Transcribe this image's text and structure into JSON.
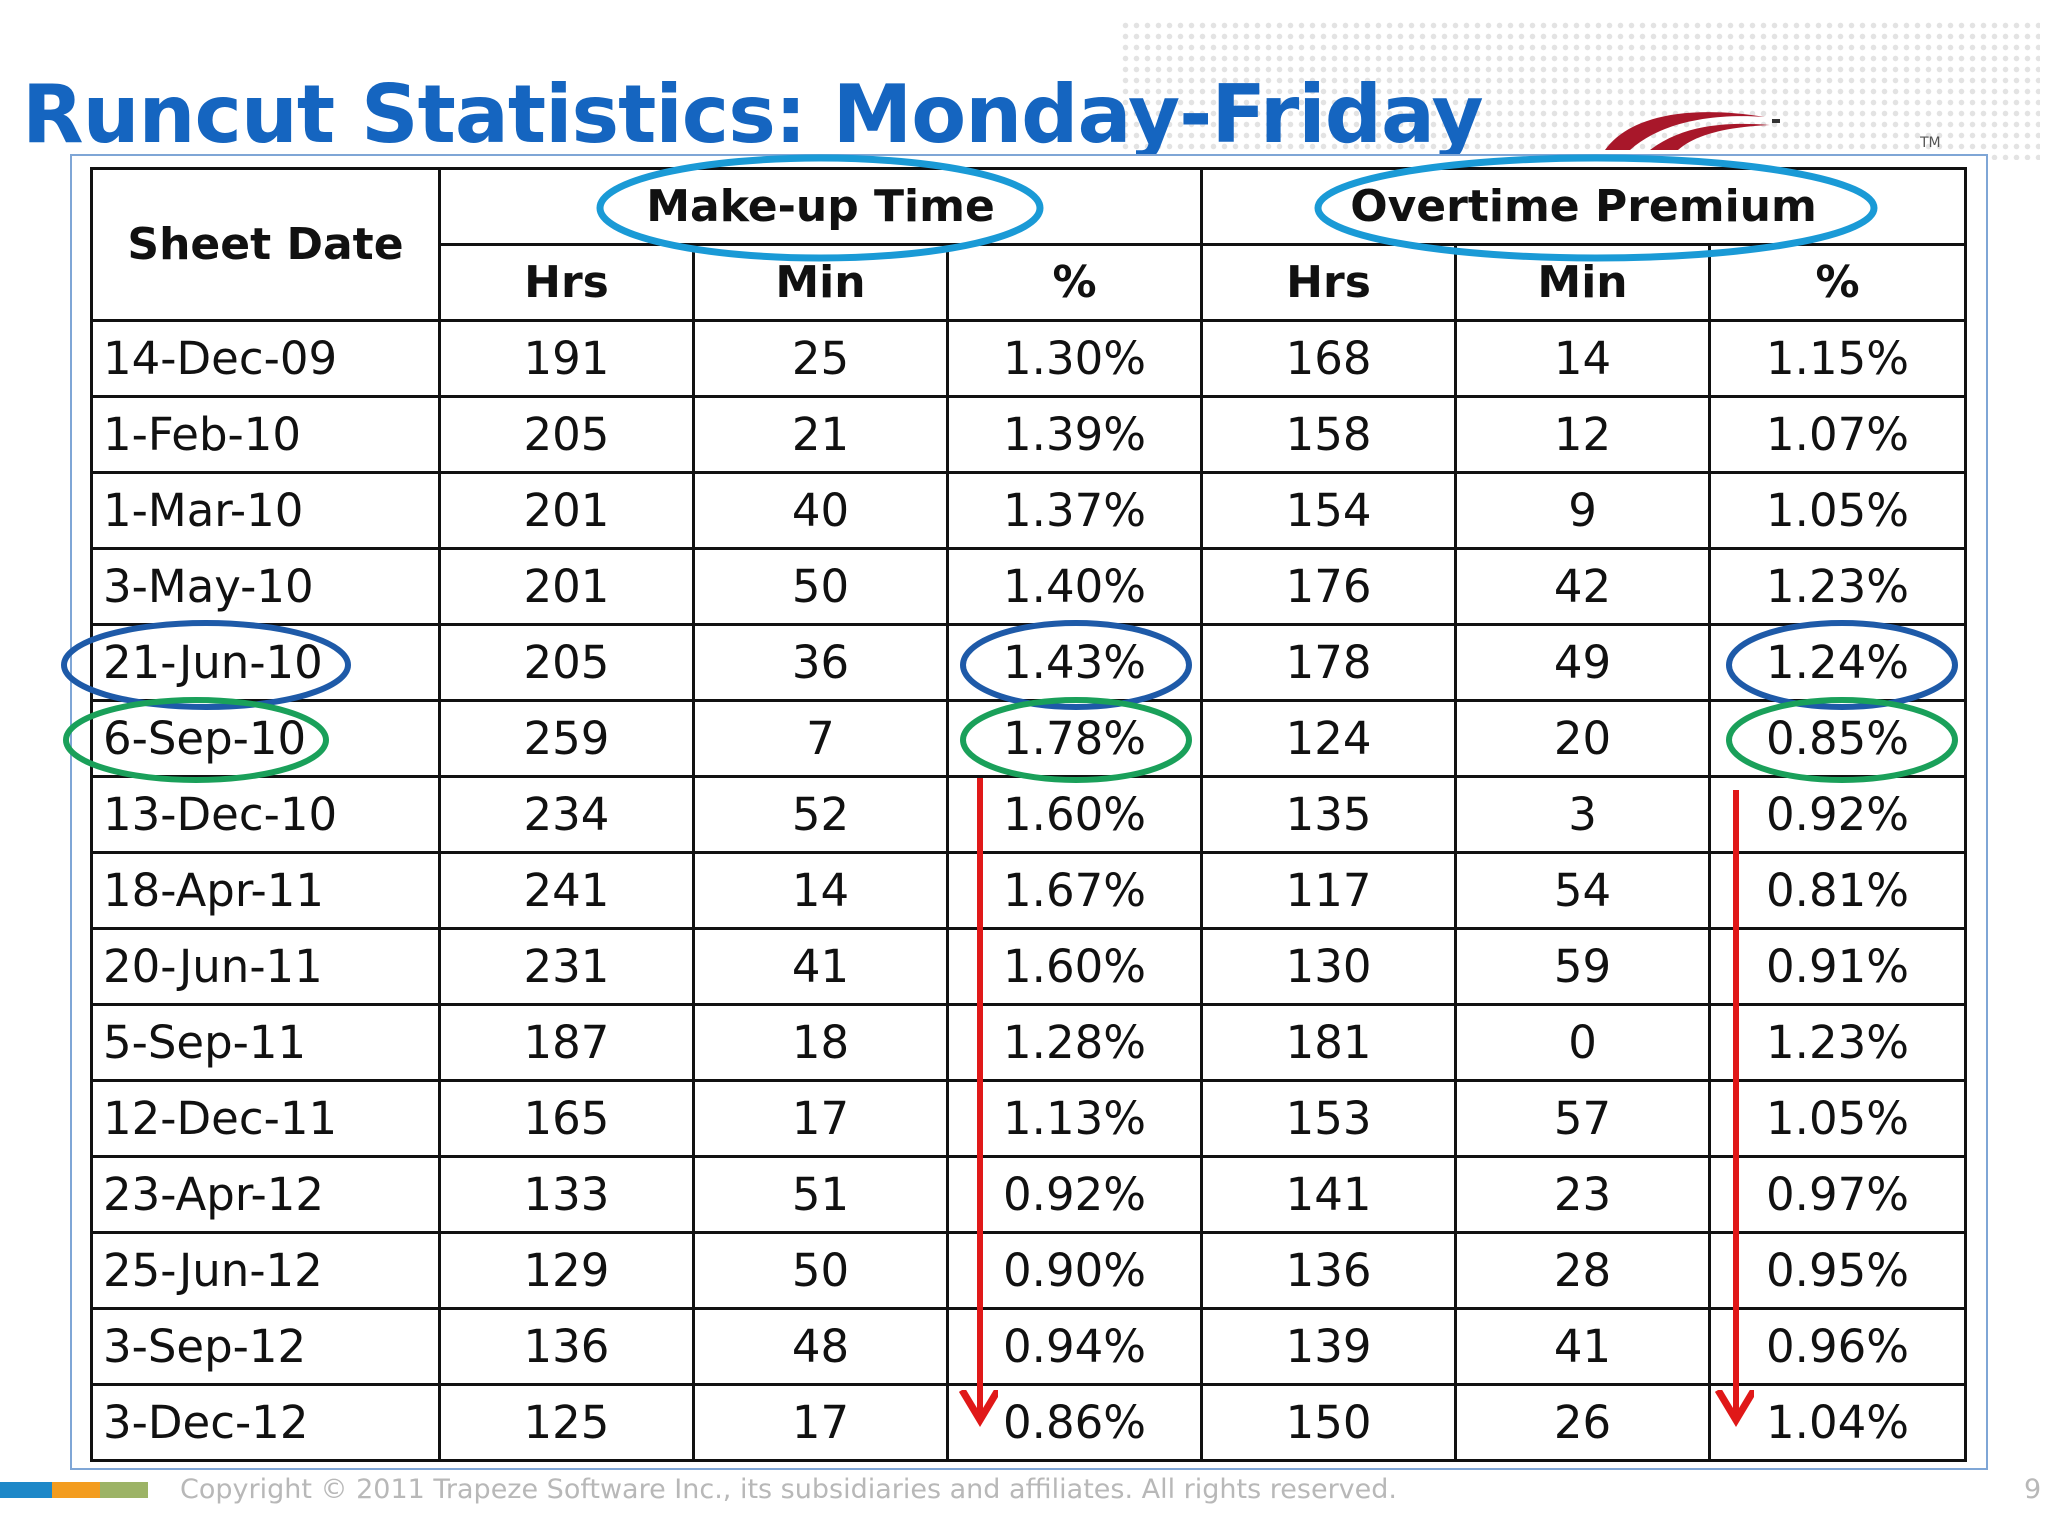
{
  "title": "Runcut Statistics: Monday-Friday",
  "logo": {
    "tm": "TM"
  },
  "table": {
    "sheet_date_header": "Sheet Date",
    "group_makeup": "Make-up Time",
    "group_overtime": "Overtime Premium",
    "sub_headers": [
      "Hrs",
      "Min",
      "%",
      "Hrs",
      "Min",
      "%"
    ],
    "rows": [
      [
        "14-Dec-09",
        "191",
        "25",
        "1.30%",
        "168",
        "14",
        "1.15%"
      ],
      [
        "1-Feb-10",
        "205",
        "21",
        "1.39%",
        "158",
        "12",
        "1.07%"
      ],
      [
        "1-Mar-10",
        "201",
        "40",
        "1.37%",
        "154",
        "9",
        "1.05%"
      ],
      [
        "3-May-10",
        "201",
        "50",
        "1.40%",
        "176",
        "42",
        "1.23%"
      ],
      [
        "21-Jun-10",
        "205",
        "36",
        "1.43%",
        "178",
        "49",
        "1.24%"
      ],
      [
        "6-Sep-10",
        "259",
        "7",
        "1.78%",
        "124",
        "20",
        "0.85%"
      ],
      [
        "13-Dec-10",
        "234",
        "52",
        "1.60%",
        "135",
        "3",
        "0.92%"
      ],
      [
        "18-Apr-11",
        "241",
        "14",
        "1.67%",
        "117",
        "54",
        "0.81%"
      ],
      [
        "20-Jun-11",
        "231",
        "41",
        "1.60%",
        "130",
        "59",
        "0.91%"
      ],
      [
        "5-Sep-11",
        "187",
        "18",
        "1.28%",
        "181",
        "0",
        "1.23%"
      ],
      [
        "12-Dec-11",
        "165",
        "17",
        "1.13%",
        "153",
        "57",
        "1.05%"
      ],
      [
        "23-Apr-12",
        "133",
        "51",
        "0.92%",
        "141",
        "23",
        "0.97%"
      ],
      [
        "25-Jun-12",
        "129",
        "50",
        "0.90%",
        "136",
        "28",
        "0.95%"
      ],
      [
        "3-Sep-12",
        "136",
        "48",
        "0.94%",
        "139",
        "41",
        "0.96%"
      ],
      [
        "3-Dec-12",
        "125",
        "17",
        "0.86%",
        "150",
        "26",
        "1.04%"
      ]
    ]
  },
  "colors": {
    "title": "#1565c0",
    "highlight_header": "#1a9ad6",
    "highlight_blue": "#1e5aa8",
    "highlight_green": "#1aa05a",
    "arrow": "#e01818"
  },
  "footer": {
    "copyright": "Copyright © 2011 Trapeze Software Inc., its subsidiaries and affiliates. All rights reserved.",
    "page": "9"
  }
}
